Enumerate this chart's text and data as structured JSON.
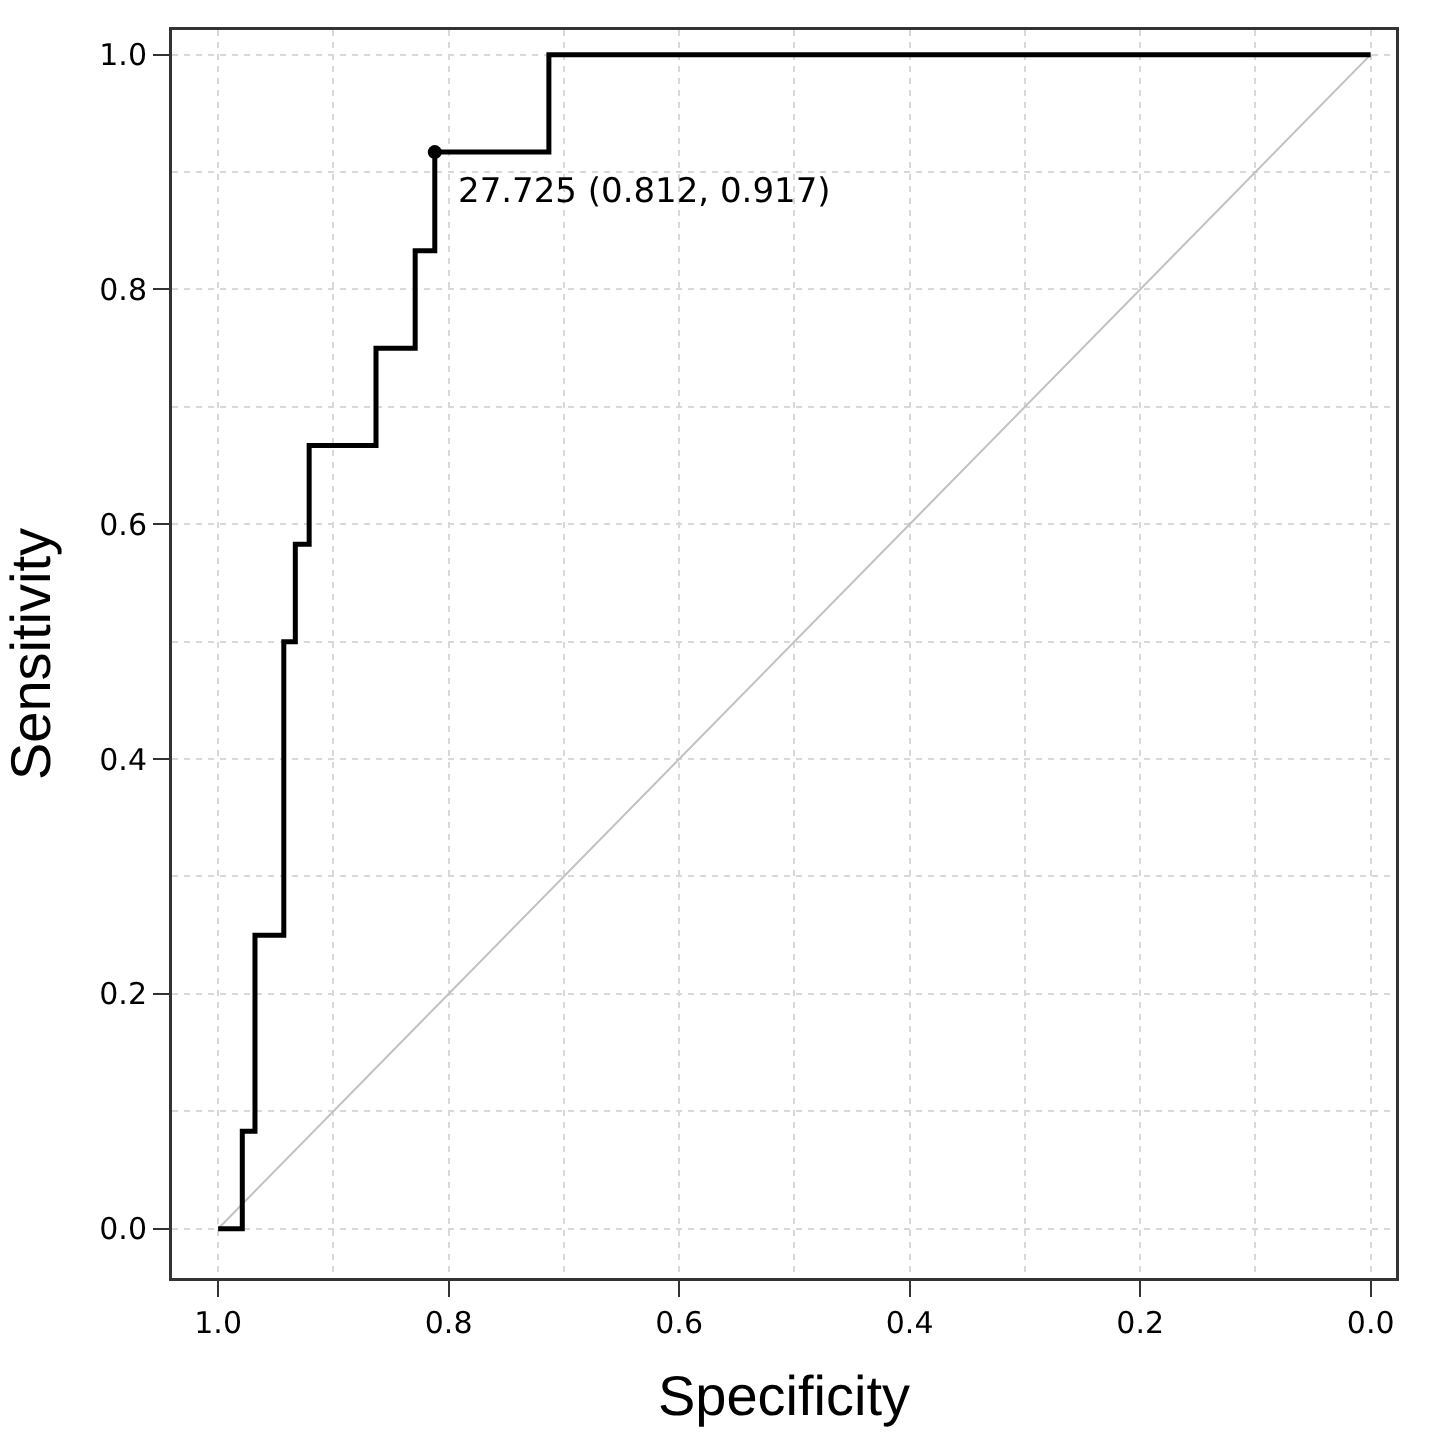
{
  "chart_data": {
    "type": "line",
    "xlabel": "Specificity",
    "ylabel": "Sensitivity",
    "xlim": [
      1.04,
      -0.022
    ],
    "ylim": [
      -0.042,
      1.021
    ],
    "xticks": [
      {
        "value": 1,
        "label": "1.0"
      },
      {
        "value": 0.8,
        "label": "0.8"
      },
      {
        "value": 0.6,
        "label": "0.6"
      },
      {
        "value": 0.4,
        "label": "0.4"
      },
      {
        "value": 0.2,
        "label": "0.2"
      },
      {
        "value": 0,
        "label": "0.0"
      }
    ],
    "yticks": [
      {
        "value": 0,
        "label": "0.0"
      },
      {
        "value": 0.2,
        "label": "0.2"
      },
      {
        "value": 0.4,
        "label": "0.4"
      },
      {
        "value": 0.6,
        "label": "0.6"
      },
      {
        "value": 0.8,
        "label": "0.8"
      },
      {
        "value": 1,
        "label": "1.0"
      }
    ],
    "grid": true,
    "legend": false,
    "marker": "none",
    "line_style": "solid",
    "series": [
      {
        "color": "#c0c0c0",
        "x": [
          1,
          0
        ],
        "values": [
          0,
          1
        ]
      },
      {
        "color": "#000000",
        "x": [
          1,
          0.979,
          0.979,
          0.968,
          0.968,
          0.943,
          0.943,
          0.933,
          0.933,
          0.921,
          0.921,
          0.863,
          0.863,
          0.829,
          0.829,
          0.812,
          0.812,
          0.713,
          0.713,
          0
        ],
        "values": [
          0,
          0,
          0.083,
          0.083,
          0.25,
          0.25,
          0.5,
          0.5,
          0.583,
          0.583,
          0.667,
          0.667,
          0.75,
          0.75,
          0.833,
          0.833,
          0.917,
          0.917,
          1,
          1
        ]
      },
      {
        "type": "scatter",
        "color": "#000000",
        "marker": "circle",
        "x": [
          0.812
        ],
        "values": [
          0.917
        ]
      }
    ],
    "annotations": [
      {
        "text": "27.725 (0.812, 0.917)",
        "x": 0.812,
        "y": 0.917
      }
    ]
  }
}
